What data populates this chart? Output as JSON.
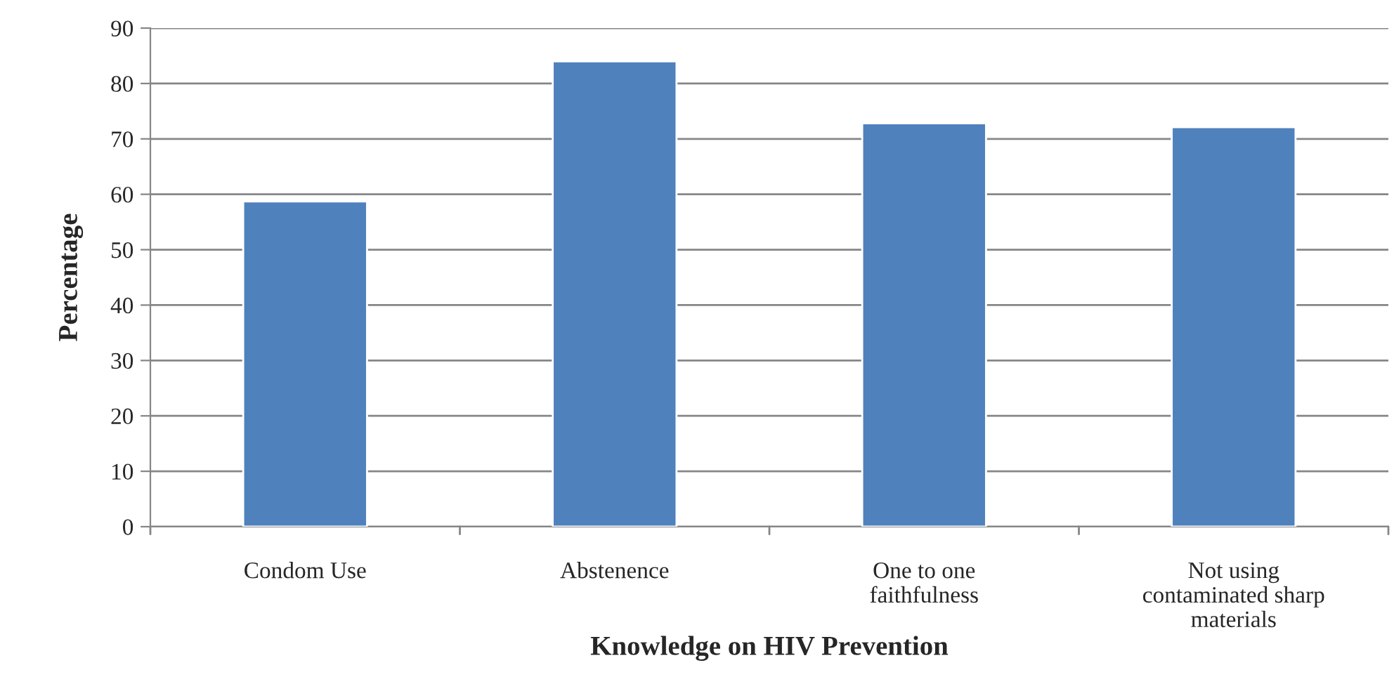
{
  "chart_data": {
    "type": "bar",
    "xlabel": "Knowledge on HIV Prevention",
    "ylabel": "Percentage",
    "categories": [
      "Condom Use",
      "Abstenence",
      "One to one\nfaithfulness",
      "Not using\ncontaminated sharp\nmaterials"
    ],
    "values": [
      58.7,
      84.0,
      72.8,
      72.1
    ],
    "color": "#4f81bd",
    "ylim": [
      0,
      90
    ],
    "yticks": [
      0,
      10,
      20,
      30,
      40,
      50,
      60,
      70,
      80,
      90
    ],
    "grid": "y"
  }
}
